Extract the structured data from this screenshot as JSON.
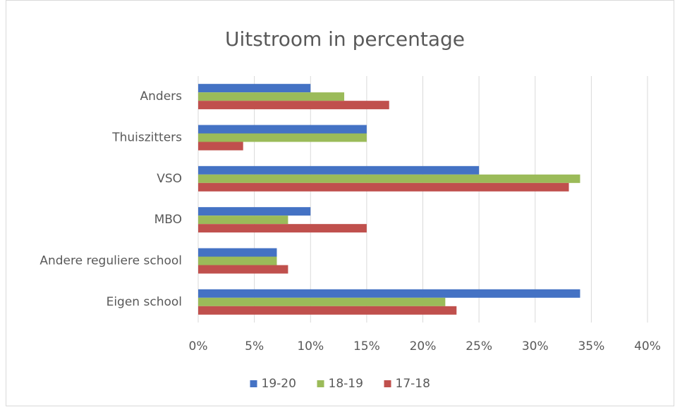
{
  "chart_data": {
    "type": "bar",
    "orientation": "horizontal",
    "title": "Uitstroom in percentage",
    "categories": [
      "Anders",
      "Thuiszitters",
      "VSO",
      "MBO",
      "Andere reguliere school",
      "Eigen school"
    ],
    "series": [
      {
        "name": "19-20",
        "color": "#4472c4",
        "values": [
          10,
          15,
          25,
          10,
          7,
          34
        ]
      },
      {
        "name": "18-19",
        "color": "#9bbb59",
        "values": [
          13,
          15,
          34,
          8,
          7,
          22
        ]
      },
      {
        "name": "17-18",
        "color": "#c0504d",
        "values": [
          17,
          4,
          33,
          15,
          8,
          23
        ]
      }
    ],
    "xlim": [
      0,
      40
    ],
    "xticks": [
      {
        "value": 0,
        "label": "0%"
      },
      {
        "value": 5,
        "label": "5%"
      },
      {
        "value": 10,
        "label": "10%"
      },
      {
        "value": 15,
        "label": "15%"
      },
      {
        "value": 20,
        "label": "20%"
      },
      {
        "value": 25,
        "label": "25%"
      },
      {
        "value": 30,
        "label": "30%"
      },
      {
        "value": 35,
        "label": "35%"
      },
      {
        "value": 40,
        "label": "40%"
      }
    ],
    "grid": true,
    "legend": "bottom"
  }
}
